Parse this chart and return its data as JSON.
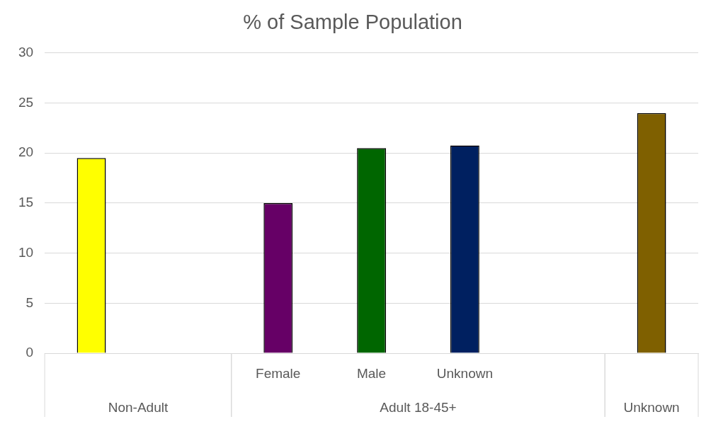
{
  "chart_data": {
    "type": "bar",
    "title": "% of Sample Population",
    "categories": [
      null,
      null,
      "Female",
      "Male",
      "Unknown",
      null,
      null
    ],
    "values": [
      19.5,
      null,
      15,
      20.5,
      20.75,
      null,
      24
    ],
    "colors": [
      "#ffff00",
      "#ffff00",
      "#660066",
      "#006600",
      "#002060",
      "#002060",
      "#7f6000"
    ],
    "ylim": [
      0,
      30
    ],
    "yticks": [
      0,
      5,
      10,
      15,
      20,
      25,
      30
    ],
    "grid": "y",
    "annotations": [
      "Non-Adult",
      "Adult 18-45+",
      "Unknown"
    ]
  }
}
